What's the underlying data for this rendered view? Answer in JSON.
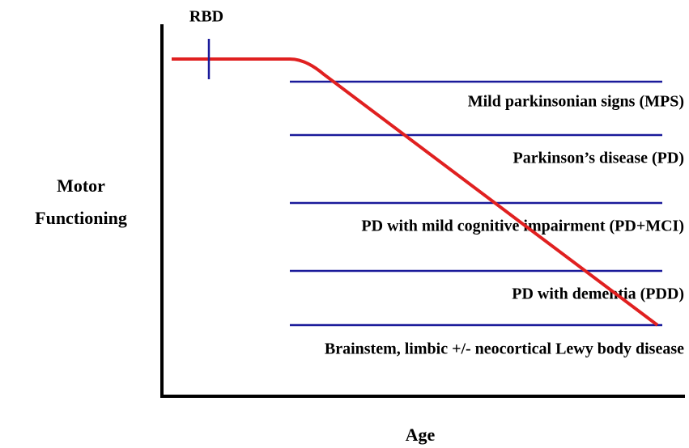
{
  "diagram": {
    "marker_label": "RBD",
    "y_axis_label": [
      "Motor",
      "Functioning"
    ],
    "x_axis_label": "Age",
    "stages": [
      "Mild parkinsonian signs (MPS)",
      "Parkinson’s disease (PD)",
      "PD with mild cognitive impairment (PD+MCI)",
      "PD with dementia (PDD)",
      "Brainstem, limbic +/- neocortical Lewy body disease"
    ]
  }
}
